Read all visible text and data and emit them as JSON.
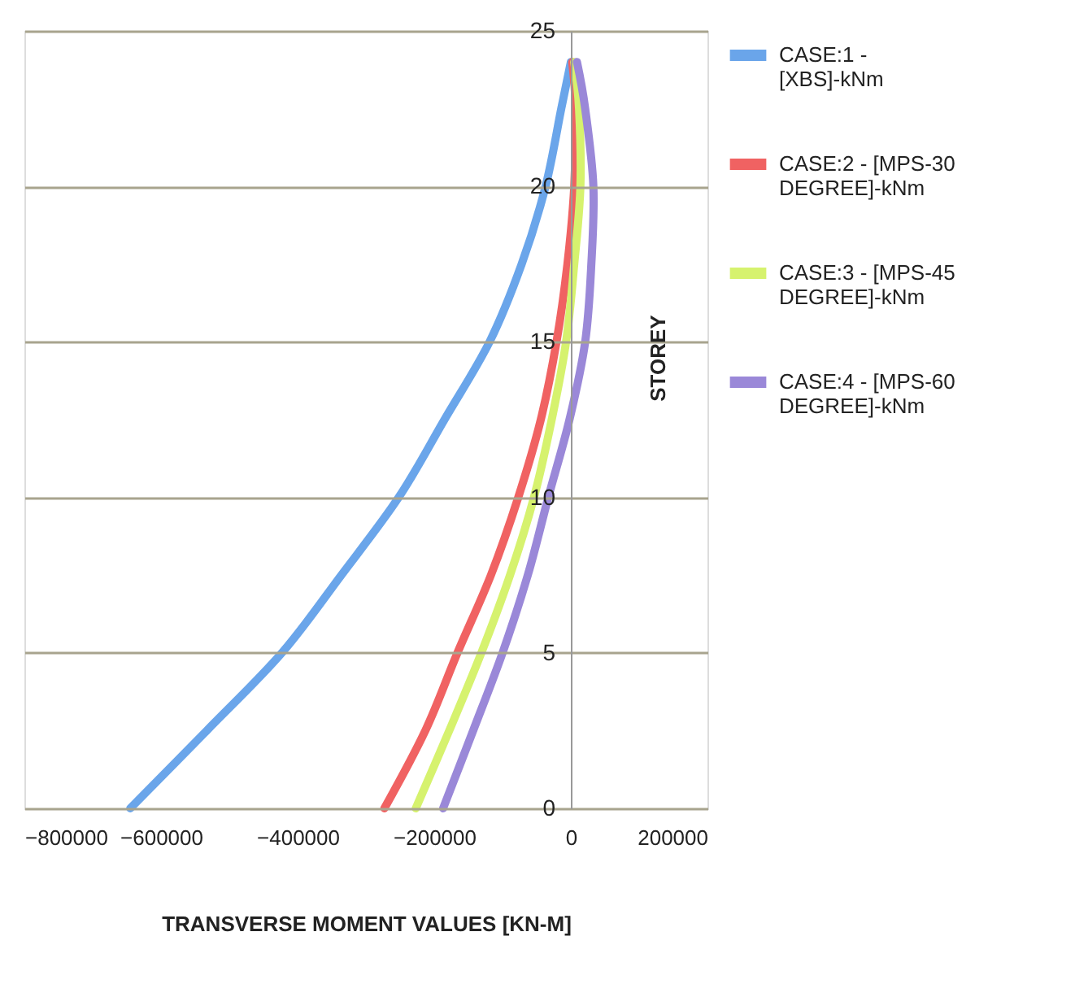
{
  "chart_data": {
    "type": "line",
    "xlabel": "TRANSVERSE  MOMENT VALUES  [KN-M]",
    "ylabel": "STOREY",
    "xlim": [
      -800000,
      200000
    ],
    "xticks": [
      -800000,
      -600000,
      -400000,
      -200000,
      0,
      200000
    ],
    "ylim": [
      0,
      25
    ],
    "yticks": [
      0,
      5,
      10,
      15,
      20,
      25
    ],
    "grid": "y",
    "legend": "right",
    "marker": "none",
    "line_style": "solid",
    "series": [
      {
        "name": "CASE:1 - [XBS]-kNm",
        "color": "#6aa5ea",
        "x": [
          -645000,
          -533000,
          -423000,
          -336000,
          -252000,
          -185000,
          -119000,
          -72000,
          -37000,
          -14000,
          0
        ],
        "values": [
          0,
          2.5,
          5,
          7.5,
          10,
          12.5,
          15,
          17.5,
          20,
          22.5,
          24
        ]
      },
      {
        "name": "CASE:2 - [MPS-30 DEGREE]-kNm",
        "color": "#f06262",
        "x": [
          -273000,
          -213000,
          -166000,
          -117000,
          -77000,
          -44000,
          -21000,
          -5000,
          5000,
          7000,
          2000
        ],
        "values": [
          0,
          2.5,
          5,
          7.5,
          10,
          12.5,
          15,
          17.5,
          20,
          22.5,
          24
        ]
      },
      {
        "name": "CASE:3 - [MPS-45 DEGREE]-kNm",
        "color": "#d6f26e",
        "x": [
          -227000,
          -178000,
          -131000,
          -89000,
          -54000,
          -28000,
          -7000,
          5000,
          14000,
          12000,
          5000
        ],
        "values": [
          0,
          2.5,
          5,
          7.5,
          10,
          12.5,
          15,
          17.5,
          20,
          22.5,
          24
        ]
      },
      {
        "name": "CASE:4 - [MPS-60 DEGREE]-kNm",
        "color": "#9a88d8",
        "x": [
          -187000,
          -143000,
          -100000,
          -63000,
          -33000,
          -2000,
          21000,
          30000,
          33000,
          21000,
          9000
        ],
        "values": [
          0,
          2.5,
          5,
          7.5,
          10,
          12.5,
          15,
          17.5,
          20,
          22.5,
          24
        ]
      }
    ]
  }
}
